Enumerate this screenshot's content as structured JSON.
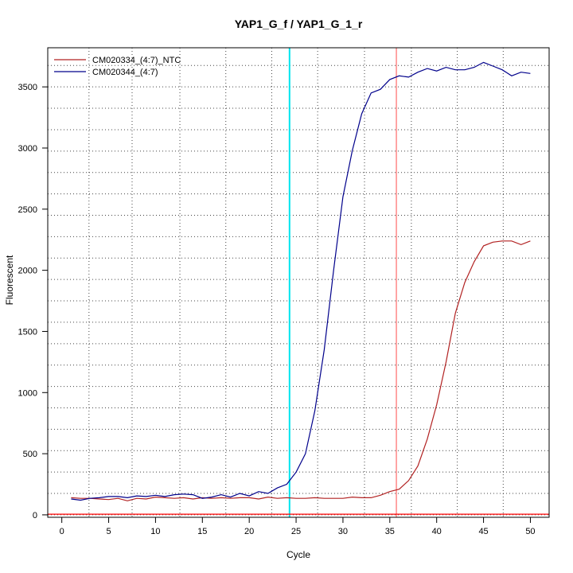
{
  "chart_data": {
    "type": "line",
    "title": "YAP1_G_f / YAP1_G_1_r",
    "xlabel": "Cycle",
    "ylabel": "Fluorescent",
    "xlim": [
      -1.5,
      52
    ],
    "ylim": [
      -20,
      3820
    ],
    "x_ticks": [
      0,
      5,
      10,
      15,
      20,
      25,
      30,
      35,
      40,
      45,
      50
    ],
    "y_ticks": [
      0,
      500,
      1000,
      1500,
      2000,
      2500,
      3000,
      3500
    ],
    "grid": true,
    "grid_v": [
      2.9,
      7.5,
      12.6,
      17.5,
      22.4,
      27.3,
      32.3,
      37.3,
      42.2,
      47.1
    ],
    "grid_h": [
      0,
      175,
      350,
      525,
      700,
      875,
      1050,
      1225,
      1400,
      1575,
      1750,
      1925,
      2100,
      2275,
      2450,
      2625,
      2800,
      2975,
      3150,
      3325,
      3500,
      3675
    ],
    "legend_position": "top-left",
    "threshold": {
      "value": 5,
      "color": "#ff0000"
    },
    "marker_lines": [
      {
        "x": 24.3,
        "color": "#00e5ee"
      },
      {
        "x": 35.7,
        "color": "#ff6a6a"
      }
    ],
    "series": [
      {
        "name": "CM020334_(4:7)_NTC",
        "color": "#b22222",
        "x": [
          1,
          2,
          3,
          4,
          5,
          6,
          7,
          8,
          9,
          10,
          11,
          12,
          13,
          14,
          15,
          16,
          17,
          18,
          19,
          20,
          21,
          22,
          23,
          24,
          25,
          26,
          27,
          28,
          29,
          30,
          31,
          32,
          33,
          34,
          35,
          36,
          37,
          38,
          39,
          40,
          41,
          42,
          43,
          44,
          45,
          46,
          47,
          48,
          49,
          50
        ],
        "values": [
          140,
          135,
          135,
          130,
          125,
          135,
          115,
          135,
          130,
          145,
          140,
          135,
          140,
          130,
          140,
          135,
          140,
          135,
          140,
          140,
          130,
          145,
          135,
          140,
          135,
          135,
          140,
          135,
          135,
          135,
          145,
          140,
          140,
          160,
          190,
          210,
          280,
          400,
          620,
          900,
          1250,
          1650,
          1900,
          2070,
          2200,
          2230,
          2240,
          2240,
          2210,
          2240
        ]
      },
      {
        "name": "CM020344_(4:7)",
        "color": "#00008b",
        "x": [
          1,
          2,
          3,
          4,
          5,
          6,
          7,
          8,
          9,
          10,
          11,
          12,
          13,
          14,
          15,
          16,
          17,
          18,
          19,
          20,
          21,
          22,
          23,
          24,
          25,
          26,
          27,
          28,
          29,
          30,
          31,
          32,
          33,
          34,
          35,
          36,
          37,
          38,
          39,
          40,
          41,
          42,
          43,
          44,
          45,
          46,
          47,
          48,
          49,
          50
        ],
        "values": [
          130,
          120,
          135,
          140,
          150,
          150,
          140,
          155,
          150,
          160,
          150,
          165,
          170,
          165,
          135,
          145,
          165,
          145,
          175,
          155,
          190,
          175,
          220,
          250,
          350,
          500,
          850,
          1350,
          2000,
          2600,
          2980,
          3280,
          3450,
          3480,
          3560,
          3590,
          3580,
          3620,
          3650,
          3630,
          3660,
          3640,
          3640,
          3660,
          3700,
          3670,
          3640,
          3590,
          3620,
          3610
        ]
      }
    ]
  }
}
